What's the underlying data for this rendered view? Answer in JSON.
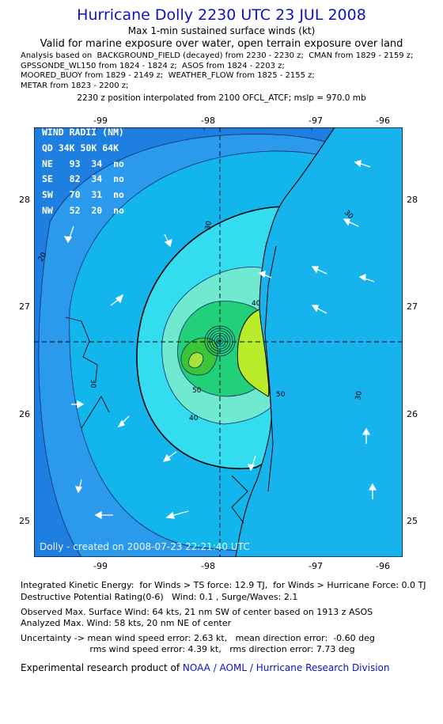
{
  "header": {
    "title": "Hurricane Dolly 2230 UTC 23 JUL 2008",
    "line1": "Max 1-min sustained surface winds (kt)",
    "line2": "Valid for marine exposure over water, open terrain exposure over land"
  },
  "analysis_lines": [
    "Analysis based on  BACKGROUND_FIELD (decayed) from 2230 - 2230 z;  CMAN from 1829 - 2159 z;",
    "GPSSONDE_WL150 from 1824 - 1824 z;  ASOS from 1824 - 2203 z;",
    "MOORED_BUOY from 1829 - 2149 z;  WEATHER_FLOW from 1825 - 2155 z;",
    "METAR from 1823 - 2200 z;"
  ],
  "interp_line": "2230 z position interpolated from 2100 OFCL_ATCF; mslp = 970.0 mb",
  "map": {
    "lon_ticks": [
      "-99",
      "-98",
      "-97",
      "-96"
    ],
    "lat_ticks": [
      "28",
      "27",
      "26",
      "25"
    ],
    "contour_labels": [
      "20",
      "30",
      "30",
      "30",
      "30",
      "40",
      "40",
      "50",
      "50"
    ],
    "credit": "Dolly - created on 2008-07-23 22:21:40 UTC",
    "center": {
      "lon": -97.78,
      "lat": 26.67
    },
    "colors": {
      "outer": "#1f7fe0",
      "ring20": "#2fa3f0",
      "ring30": "#13cde8",
      "ring34": "#3fe6f0",
      "ring40": "#72ecd0",
      "ring50": "#1fd37a",
      "ring58": "#34c83c",
      "land": "#c8ee2a"
    }
  },
  "wind_radii": {
    "header": "WIND RADII (NM)",
    "columns": [
      "QD",
      "34K",
      "50K",
      "64K"
    ],
    "rows": [
      [
        "NE",
        "93",
        "34",
        "no"
      ],
      [
        "SE",
        "82",
        "34",
        "no"
      ],
      [
        "SW",
        "70",
        "31",
        "no"
      ],
      [
        "NW",
        "52",
        "20",
        "no"
      ]
    ]
  },
  "stats": {
    "ike1": "Integrated Kinetic Energy:  for Winds > TS force: 12.9 TJ,  for Winds > Hurricane Force: 0.0 TJ",
    "ike2": "Destructive Potential Rating(0-6)   Wind: 0.1 , Surge/Waves: 2.1",
    "obs1": "Observed Max. Surface Wind: 64 kts, 21 nm SW of center based on 1913 z ASOS",
    "obs2": "Analyzed Max. Wind: 58 kts, 20 nm NE of center",
    "unc1": "Uncertainty -> mean wind speed error: 2.63 kt,   mean direction error:  -0.60 deg",
    "unc2": "                         rms wind speed error: 4.39 kt,   rms direction error: 7.73 deg"
  },
  "footer": {
    "prefix": "Experimental research product of ",
    "org": "NOAA / AOML / Hurricane Research Division"
  }
}
